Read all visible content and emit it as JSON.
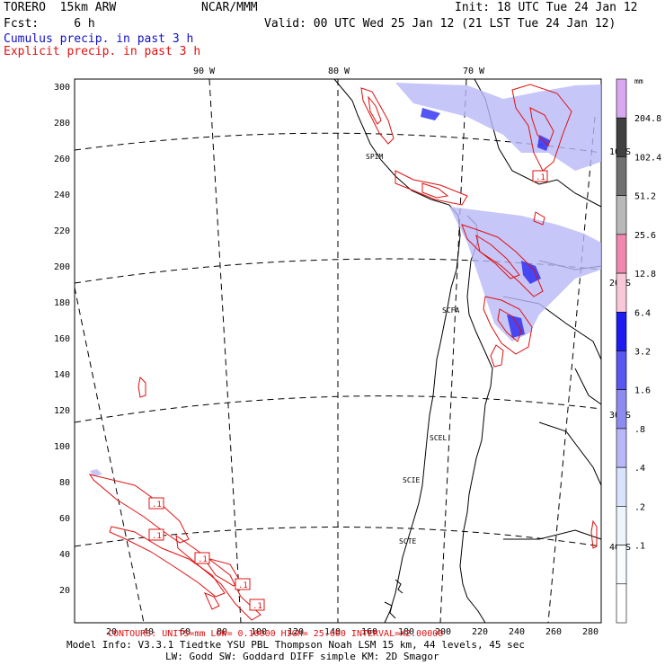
{
  "header": {
    "model": "TORERO  15km ARW",
    "org": "NCAR/MMM",
    "init": "Init: 18 UTC Tue 24 Jan 12",
    "fcst": "Fcst:     6 h",
    "valid": "Valid: 00 UTC Wed 25 Jan 12 (21 LST Tue 24 Jan 12)",
    "cumulus_label": "Cumulus precip. in past 3 h",
    "explicit_label": "Explicit precip. in past 3 h"
  },
  "map": {
    "longitude_labels": [
      "90 W",
      "80 W",
      "70 W"
    ],
    "latitude_labels": [
      "10 S",
      "20 S",
      "30 S",
      "40 S"
    ],
    "y_ticks": [
      "300",
      "280",
      "260",
      "240",
      "220",
      "200",
      "180",
      "160",
      "140",
      "120",
      "100",
      "80",
      "60",
      "40",
      "20"
    ],
    "x_ticks": [
      "20",
      "40",
      "60",
      "80",
      "100",
      "120",
      "140",
      "160",
      "180",
      "200",
      "220",
      "240",
      "260",
      "280"
    ],
    "stations": [
      "SPIM",
      "SCFA",
      "SCEL",
      "SCIE",
      "SCTE"
    ],
    "contour_boxes": [
      ".1",
      ".1",
      ".1",
      ".1",
      ".1",
      ".1"
    ],
    "colors": {
      "cumulus": "#1010c8",
      "explicit": "#e01010",
      "coast": "#000000"
    }
  },
  "colorbar": {
    "unit": "mm",
    "labels": [
      "204.8",
      "102.4",
      "51.2",
      "25.6",
      "12.8",
      "6.4",
      "3.2",
      "1.6",
      ".8",
      ".4",
      ".2",
      ".1"
    ],
    "colors": [
      "#d8a8f0",
      "#404040",
      "#707070",
      "#b8b8b8",
      "#f088b0",
      "#f8c8d8",
      "#1c1cf0",
      "#5858f0",
      "#8c8cf0",
      "#b8b8f8",
      "#d8e4fc",
      "#ecf4fc",
      "#f6fcff",
      "#ffffff"
    ]
  },
  "footer": {
    "contour_info": "CONTOURS:  UNITS=mm    LOW=  0.10000    HIGH=  25.600    INTERVAL=X2.00000",
    "model_info": "Model Info: V3.3.1    Tiedtke YSU PBL  Thompson    Noah LSM  15 km,   44 levels,   45 sec",
    "model_info2": "LW: Godd SW: Goddard DIFF  simple KM: 2D Smagor"
  }
}
